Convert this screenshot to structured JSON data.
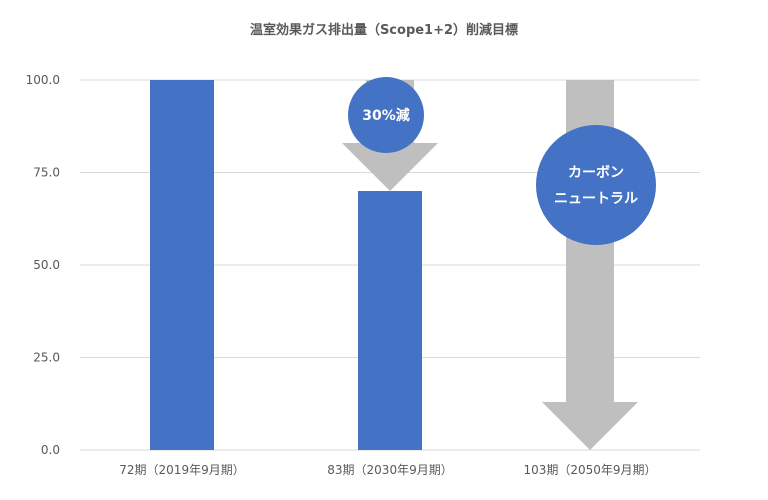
{
  "chart_data": {
    "type": "bar",
    "title": "温室効果ガス排出量（Scope1+2）削減目標",
    "categories": [
      "72期（2019年9月期）",
      "83期（2030年9月期）",
      "103期（2050年9月期）"
    ],
    "values": [
      100.0,
      70.0,
      0.0
    ],
    "ylim": [
      0,
      100
    ],
    "yticks": [
      "0.0",
      "25.0",
      "50.0",
      "75.0",
      "100.0"
    ],
    "grid": true,
    "xlabel": "",
    "ylabel": "",
    "annotations": [
      {
        "category_index": 1,
        "type": "down-arrow",
        "from": 100.0,
        "to": 70.0,
        "label": "30%減"
      },
      {
        "category_index": 2,
        "type": "down-arrow",
        "from": 100.0,
        "to": 0.0,
        "label_lines": [
          "カーボン",
          "ニュートラル"
        ]
      }
    ]
  },
  "colors": {
    "bar": "#4472c4",
    "arrow": "#bfbfbf",
    "circle": "#4472c4",
    "circle_text": "#ffffff",
    "grid": "#d9d9d9",
    "text": "#595959"
  }
}
